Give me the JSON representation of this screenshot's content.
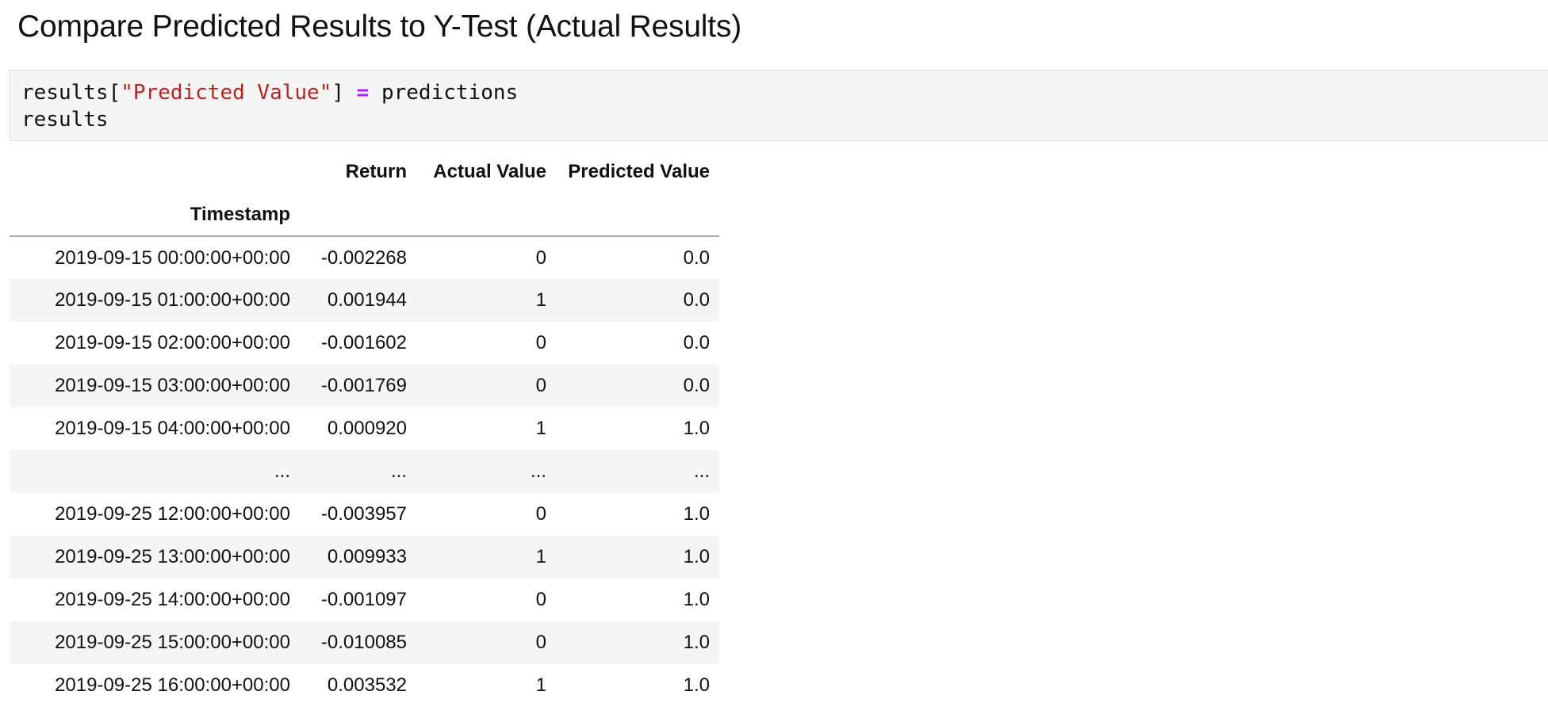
{
  "heading": "Compare Predicted Results to Y-Test (Actual Results)",
  "code": {
    "line1": {
      "part1": "results[",
      "string": "\"Predicted Value\"",
      "part2": "] ",
      "operator": "=",
      "part3": " predictions"
    },
    "line2": "results"
  },
  "dataframe": {
    "index_name": "Timestamp",
    "columns": [
      "Return",
      "Actual Value",
      "Predicted Value"
    ],
    "rows": [
      {
        "index": "2019-09-15 00:00:00+00:00",
        "values": [
          "-0.002268",
          "0",
          "0.0"
        ]
      },
      {
        "index": "2019-09-15 01:00:00+00:00",
        "values": [
          "0.001944",
          "1",
          "0.0"
        ]
      },
      {
        "index": "2019-09-15 02:00:00+00:00",
        "values": [
          "-0.001602",
          "0",
          "0.0"
        ]
      },
      {
        "index": "2019-09-15 03:00:00+00:00",
        "values": [
          "-0.001769",
          "0",
          "0.0"
        ]
      },
      {
        "index": "2019-09-15 04:00:00+00:00",
        "values": [
          "0.000920",
          "1",
          "1.0"
        ]
      },
      {
        "index": "...",
        "values": [
          "...",
          "...",
          "..."
        ]
      },
      {
        "index": "2019-09-25 12:00:00+00:00",
        "values": [
          "-0.003957",
          "0",
          "1.0"
        ]
      },
      {
        "index": "2019-09-25 13:00:00+00:00",
        "values": [
          "0.009933",
          "1",
          "1.0"
        ]
      },
      {
        "index": "2019-09-25 14:00:00+00:00",
        "values": [
          "-0.001097",
          "0",
          "1.0"
        ]
      },
      {
        "index": "2019-09-25 15:00:00+00:00",
        "values": [
          "-0.010085",
          "0",
          "1.0"
        ]
      },
      {
        "index": "2019-09-25 16:00:00+00:00",
        "values": [
          "0.003532",
          "1",
          "1.0"
        ]
      }
    ]
  }
}
